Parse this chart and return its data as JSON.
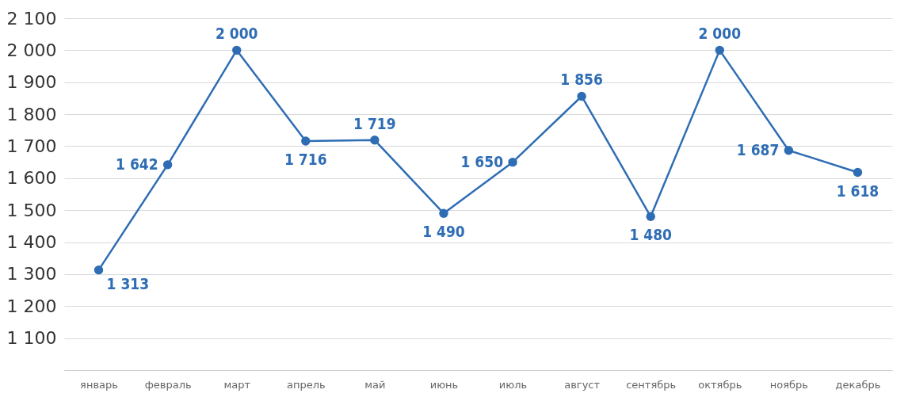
{
  "chart_data": {
    "type": "line",
    "categories": [
      "январь",
      "февраль",
      "март",
      "апрель",
      "май",
      "июнь",
      "июль",
      "август",
      "сентябрь",
      "октябрь",
      "ноябрь",
      "декабрь"
    ],
    "series": [
      {
        "color": "#2e6db4",
        "values": [
          1313,
          1642,
          2000,
          1716,
          1719,
          1490,
          1650,
          1856,
          1480,
          2000,
          1687,
          1618
        ],
        "value_labels": [
          "1 313",
          "1 642",
          "2 000",
          "1 716",
          "1 719",
          "1 490",
          "1 650",
          "1 856",
          "1 480",
          "2 000",
          "1 687",
          "1 618"
        ]
      }
    ],
    "ylim": [
      1000,
      2100
    ],
    "yticks": [
      {
        "value": 1000,
        "label": null
      },
      {
        "value": 1100,
        "label": "1 100"
      },
      {
        "value": 1200,
        "label": "1 200"
      },
      {
        "value": 1300,
        "label": "1 300"
      },
      {
        "value": 1400,
        "label": "1 400"
      },
      {
        "value": 1500,
        "label": "1 500"
      },
      {
        "value": 1600,
        "label": "1 600"
      },
      {
        "value": 1700,
        "label": "1 700"
      },
      {
        "value": 1800,
        "label": "1 800"
      },
      {
        "value": 1900,
        "label": "1 900"
      },
      {
        "value": 2000,
        "label": "2 000"
      },
      {
        "value": 2100,
        "label": "2 100"
      }
    ],
    "grid": "y",
    "marker": "circle",
    "line_style": "solid"
  }
}
